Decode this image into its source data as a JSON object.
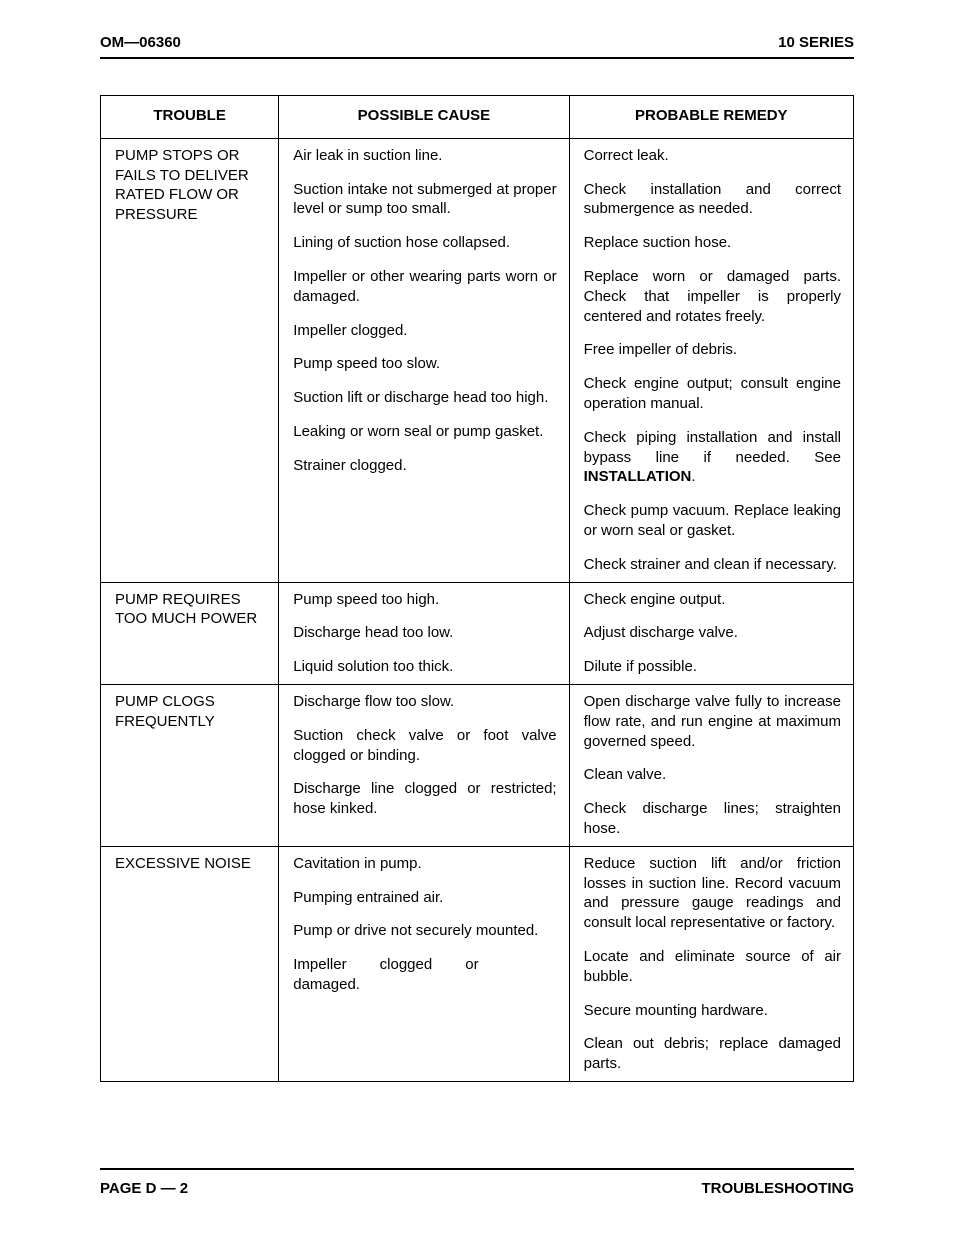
{
  "header": {
    "left": "OM—06360",
    "right": "10 SERIES"
  },
  "footer": {
    "left": "PAGE D — 2",
    "right": "TROUBLESHOOTING"
  },
  "table": {
    "columns": [
      "TROUBLE",
      "POSSIBLE CAUSE",
      "PROBABLE REMEDY"
    ],
    "sections": [
      {
        "trouble": "PUMP STOPS OR FAILS TO DELIVER RATED FLOW OR PRESSURE",
        "rows": [
          {
            "cause": "Air leak in suction line.",
            "remedy": "Correct leak."
          },
          {
            "cause": "Suction intake not submerged at proper level or sump too small.",
            "cause_justify": true,
            "remedy": "Check installation and correct submergence as needed.",
            "remedy_justify": true
          },
          {
            "cause": "Lining of suction hose collapsed.",
            "remedy": "Replace suction hose."
          },
          {
            "cause": "Impeller or other wearing parts worn or damaged.",
            "cause_justify": true,
            "remedy": "Replace worn or damaged parts. Check that impeller is properly centered and rotates freely.",
            "remedy_justify": true
          },
          {
            "cause": "Impeller clogged.",
            "remedy": "Free impeller of debris."
          },
          {
            "cause": "Pump speed too slow.",
            "remedy": "Check engine output; consult engine operation manual.",
            "remedy_justify": true
          },
          {
            "cause": "Suction lift or discharge head too high.",
            "remedy_html": "Check piping installation and install bypass line if needed. See <b>INSTALLATION</b>.",
            "remedy_justify": true
          },
          {
            "cause": "Leaking or worn seal or pump gasket.",
            "remedy": "Check pump vacuum. Replace leaking or worn seal or gasket.",
            "remedy_justify": true
          },
          {
            "cause": "Strainer clogged.",
            "remedy": "Check strainer and clean if necessary."
          }
        ]
      },
      {
        "trouble": "PUMP REQUIRES TOO MUCH POWER",
        "rows": [
          {
            "cause": "Pump speed too high.",
            "remedy": "Check engine output."
          },
          {
            "cause": "Discharge head too low.",
            "remedy": "Adjust discharge valve."
          },
          {
            "cause": "Liquid solution too thick.",
            "remedy": "Dilute if possible."
          }
        ]
      },
      {
        "trouble": "PUMP CLOGS FREQUENTLY",
        "rows": [
          {
            "cause": "Discharge flow too slow.",
            "remedy": "Open discharge valve fully to increase flow rate, and run engine at maximum governed speed.",
            "remedy_justify": true
          },
          {
            "cause": "Suction check valve or foot valve clogged or binding.",
            "cause_justify": true,
            "remedy": "Clean valve."
          },
          {
            "cause": "Discharge line clogged or restricted; hose kinked.",
            "cause_justify": true,
            "remedy": "Check discharge lines; straighten hose.",
            "remedy_justify": true
          }
        ]
      },
      {
        "trouble": "EXCESSIVE NOISE",
        "rows": [
          {
            "cause": "Cavitation in pump.",
            "remedy": "Reduce suction lift and/or friction losses in suction line. Record vacuum and pressure gauge readings and consult local representative or factory.",
            "remedy_justify": true
          },
          {
            "cause": "Pumping entrained air.",
            "remedy": "Locate and eliminate source of air bubble.",
            "remedy_justify": true
          },
          {
            "cause": "Pump or drive not securely mounted.",
            "remedy": "Secure mounting hardware."
          },
          {
            "cause": "Impeller clogged or damaged.",
            "cause_justify": true,
            "cause_narrow": true,
            "remedy": "Clean out debris; replace damaged parts.",
            "remedy_justify": true
          }
        ]
      }
    ]
  }
}
